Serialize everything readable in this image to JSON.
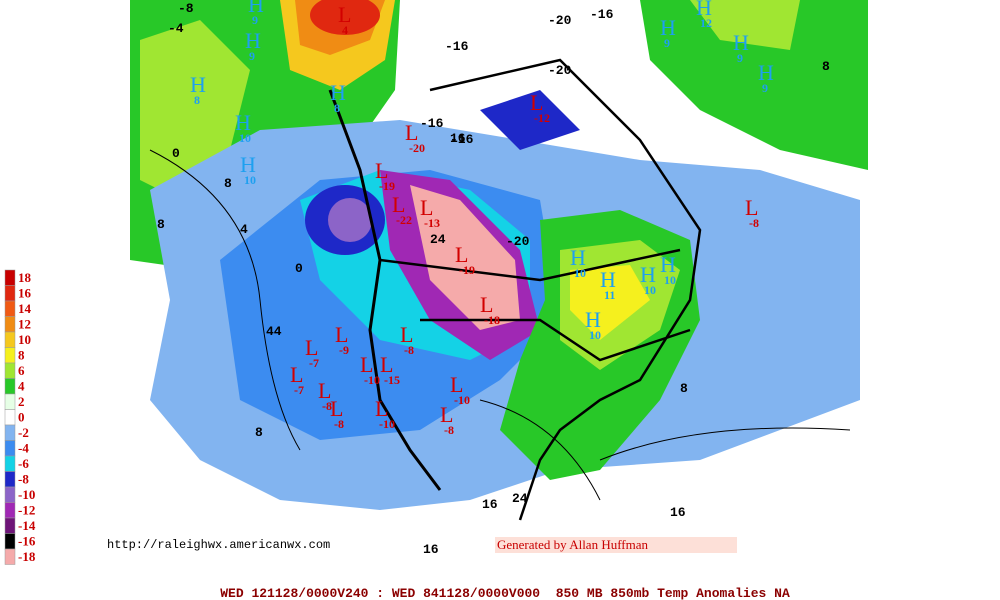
{
  "legend": [
    {
      "label": "18",
      "color": "#c80000"
    },
    {
      "label": "16",
      "color": "#e02810"
    },
    {
      "label": "14",
      "color": "#f05a14"
    },
    {
      "label": "12",
      "color": "#f08c14"
    },
    {
      "label": "10",
      "color": "#f5c81e"
    },
    {
      "label": "8",
      "color": "#f5f01e"
    },
    {
      "label": "6",
      "color": "#a0e632"
    },
    {
      "label": "4",
      "color": "#28c828"
    },
    {
      "label": "2",
      "color": "#e6ffe6"
    },
    {
      "label": "0",
      "color": "#ffffff"
    },
    {
      "label": "-2",
      "color": "#82b4f0"
    },
    {
      "label": "-4",
      "color": "#3c8cf0"
    },
    {
      "label": "-6",
      "color": "#14d2e6"
    },
    {
      "label": "-8",
      "color": "#1e28c8"
    },
    {
      "label": "-10",
      "color": "#8c64c8"
    },
    {
      "label": "-12",
      "color": "#a028b4"
    },
    {
      "label": "-14",
      "color": "#6e1478"
    },
    {
      "label": "-16",
      "color": "#000000"
    },
    {
      "label": "-18",
      "color": "#f5aaaa"
    }
  ],
  "url": "http://raleighwx.americanwx.com",
  "credit": "Generated by Allan Huffman",
  "footer": "WED 121128/0000V240 : WED 841128/0000V000  850 MB 850mb Temp Anomalies NA",
  "centers": [
    {
      "symbol": "H",
      "value": "9"
    },
    {
      "symbol": "H",
      "value": "9"
    },
    {
      "symbol": "L",
      "value": "4"
    },
    {
      "symbol": "H",
      "value": "8"
    },
    {
      "symbol": "H",
      "value": "8"
    },
    {
      "symbol": "H",
      "value": "10"
    },
    {
      "symbol": "H",
      "value": "10"
    },
    {
      "symbol": "H",
      "value": "12"
    },
    {
      "symbol": "H",
      "value": "9"
    },
    {
      "symbol": "H",
      "value": "9"
    },
    {
      "symbol": "H",
      "value": "9"
    },
    {
      "symbol": "L",
      "value": "-12"
    },
    {
      "symbol": "L",
      "value": "-20"
    },
    {
      "symbol": "L",
      "value": "-19"
    },
    {
      "symbol": "L",
      "value": "-22"
    },
    {
      "symbol": "L",
      "value": "-13"
    },
    {
      "symbol": "L",
      "value": "-19"
    },
    {
      "symbol": "L",
      "value": "-18"
    },
    {
      "symbol": "L",
      "value": "-7"
    },
    {
      "symbol": "L",
      "value": "-9"
    },
    {
      "symbol": "L",
      "value": "-7"
    },
    {
      "symbol": "L",
      "value": "-8"
    },
    {
      "symbol": "L",
      "value": "-8"
    },
    {
      "symbol": "L",
      "value": "-10"
    },
    {
      "symbol": "L",
      "value": "-15"
    },
    {
      "symbol": "L",
      "value": "-8"
    },
    {
      "symbol": "L",
      "value": "-10"
    },
    {
      "symbol": "L",
      "value": "-8"
    },
    {
      "symbol": "L",
      "value": "-10"
    },
    {
      "symbol": "L",
      "value": "-8"
    },
    {
      "symbol": "H",
      "value": "10"
    },
    {
      "symbol": "H",
      "value": "11"
    },
    {
      "symbol": "H",
      "value": "10"
    },
    {
      "symbol": "H",
      "value": "10"
    },
    {
      "symbol": "H",
      "value": "10"
    }
  ],
  "contour_labels": [
    "-8",
    "-4",
    "-16",
    "-20",
    "-16",
    "-16",
    "8",
    "0",
    "8",
    "4",
    "0",
    "8",
    "44",
    "24",
    "-20",
    "8",
    "8",
    "16",
    "16",
    "24",
    "16",
    "-16",
    "-20",
    "16"
  ]
}
